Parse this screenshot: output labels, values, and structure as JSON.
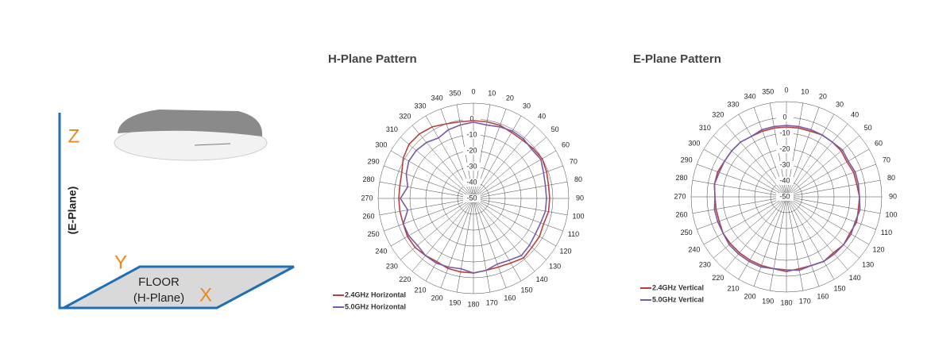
{
  "diagram": {
    "z_label": "Z",
    "e_plane": "(E-Plane)",
    "y_label": "Y",
    "floor": "FLOOR",
    "h_plane": "(H-Plane)",
    "x_label": "X"
  },
  "chart_data": [
    {
      "type": "polar",
      "title": "H-Plane Pattern",
      "angles": [
        0,
        10,
        20,
        30,
        40,
        50,
        60,
        70,
        80,
        90,
        100,
        110,
        120,
        130,
        140,
        150,
        160,
        170,
        180,
        190,
        200,
        210,
        220,
        230,
        240,
        250,
        260,
        270,
        280,
        290,
        300,
        310,
        320,
        330,
        340,
        350
      ],
      "rlim": [
        -50,
        10
      ],
      "rticks": [
        -50,
        -40,
        -30,
        -20,
        -10,
        0
      ],
      "series": [
        {
          "name": "2.4GHz Horizontal",
          "color": "#b5403f",
          "values": [
            -1,
            -1,
            -1,
            -2,
            -2,
            -1,
            0,
            -1,
            -2,
            -2,
            -2,
            -3,
            -2,
            -2,
            -1,
            -3,
            -4,
            -4,
            -3,
            -3,
            -3,
            -4,
            -3,
            -2,
            -2,
            -3,
            -3,
            -3,
            -3,
            -2,
            1,
            3,
            3,
            2,
            0,
            -1
          ]
        },
        {
          "name": "5.0GHz Horizontal",
          "color": "#7a5aa6",
          "values": [
            -2,
            -3,
            -2,
            -1,
            -1,
            -2,
            -1,
            -3,
            -4,
            -4,
            -4,
            -5,
            -5,
            -4,
            -3,
            -5,
            -6,
            -4,
            -3,
            -5,
            -4,
            -3,
            -3,
            -4,
            -3,
            -3,
            -8,
            -4,
            -8,
            -5,
            -3,
            -3,
            -4,
            -6,
            -4,
            -3
          ]
        }
      ]
    },
    {
      "type": "polar",
      "title": "E-Plane Pattern",
      "angles": [
        0,
        10,
        20,
        30,
        40,
        50,
        60,
        70,
        80,
        90,
        100,
        110,
        120,
        130,
        140,
        150,
        160,
        170,
        180,
        190,
        200,
        210,
        220,
        230,
        240,
        250,
        260,
        270,
        280,
        290,
        300,
        310,
        320,
        330,
        340,
        350
      ],
      "rlim": [
        -50,
        10
      ],
      "rticks": [
        -50,
        -40,
        -30,
        -20,
        -10,
        0
      ],
      "series": [
        {
          "name": "2.4GHz Vertical",
          "color": "#b5403f",
          "values": [
            -6,
            -6,
            -6,
            -5,
            -5,
            -5,
            -6,
            -5,
            -5,
            -4,
            -4,
            -3,
            -4,
            -3,
            -4,
            -3,
            -4,
            -4,
            -3,
            -4,
            -4,
            -4,
            -4,
            -4,
            -4,
            -5,
            -5,
            -5,
            -4,
            -4,
            -5,
            -5,
            -5,
            -6,
            -6,
            -6
          ]
        },
        {
          "name": "5.0GHz Vertical",
          "color": "#7a5aa6",
          "values": [
            -5,
            -5,
            -5,
            -5,
            -5,
            -4,
            -5,
            -4,
            -4,
            -4,
            -3,
            -4,
            -3,
            -3,
            -3,
            -3,
            -4,
            -3,
            -4,
            -4,
            -3,
            -3,
            -3,
            -3,
            -4,
            -4,
            -4,
            -5,
            -4,
            -5,
            -5,
            -5,
            -5,
            -6,
            -5,
            -5
          ]
        }
      ]
    }
  ]
}
